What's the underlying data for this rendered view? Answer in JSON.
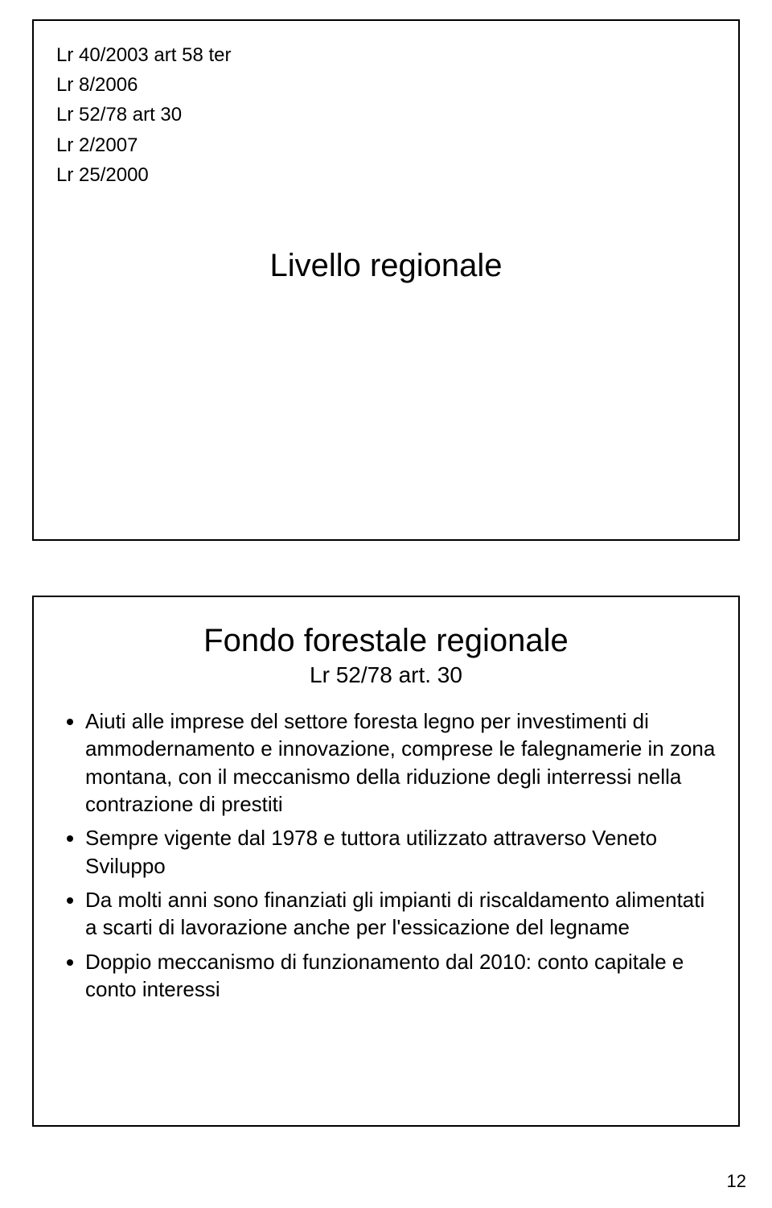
{
  "page": {
    "number": "12"
  },
  "slide_top": {
    "law_refs": [
      "Lr 40/2003 art 58 ter",
      "Lr  8/2006",
      "Lr 52/78 art 30",
      "Lr  2/2007",
      "Lr 25/2000"
    ],
    "title": "Livello regionale"
  },
  "slide_bottom": {
    "title": "Fondo forestale regionale",
    "subtitle": "Lr 52/78 art. 30",
    "bullets": [
      "Aiuti alle imprese del settore foresta legno per investimenti di ammodernamento e innovazione, comprese le falegnamerie in zona montana, con il meccanismo della riduzione degli interressi nella contrazione di prestiti",
      "Sempre vigente dal 1978 e tuttora utilizzato attraverso Veneto Sviluppo",
      "Da molti anni sono finanziati gli impianti di riscaldamento alimentati a scarti di lavorazione anche per l'essicazione del legname",
      "Doppio meccanismo di funzionamento dal 2010: conto capitale e conto interessi"
    ]
  },
  "style": {
    "border_color": "#000000",
    "text_color": "#000000",
    "background_color": "#ffffff",
    "font_family": "Arial",
    "law_ref_fontsize": 24,
    "title_fontsize": 40,
    "subtitle_fontsize": 28,
    "bullet_fontsize": 26,
    "page_num_fontsize": 22
  }
}
